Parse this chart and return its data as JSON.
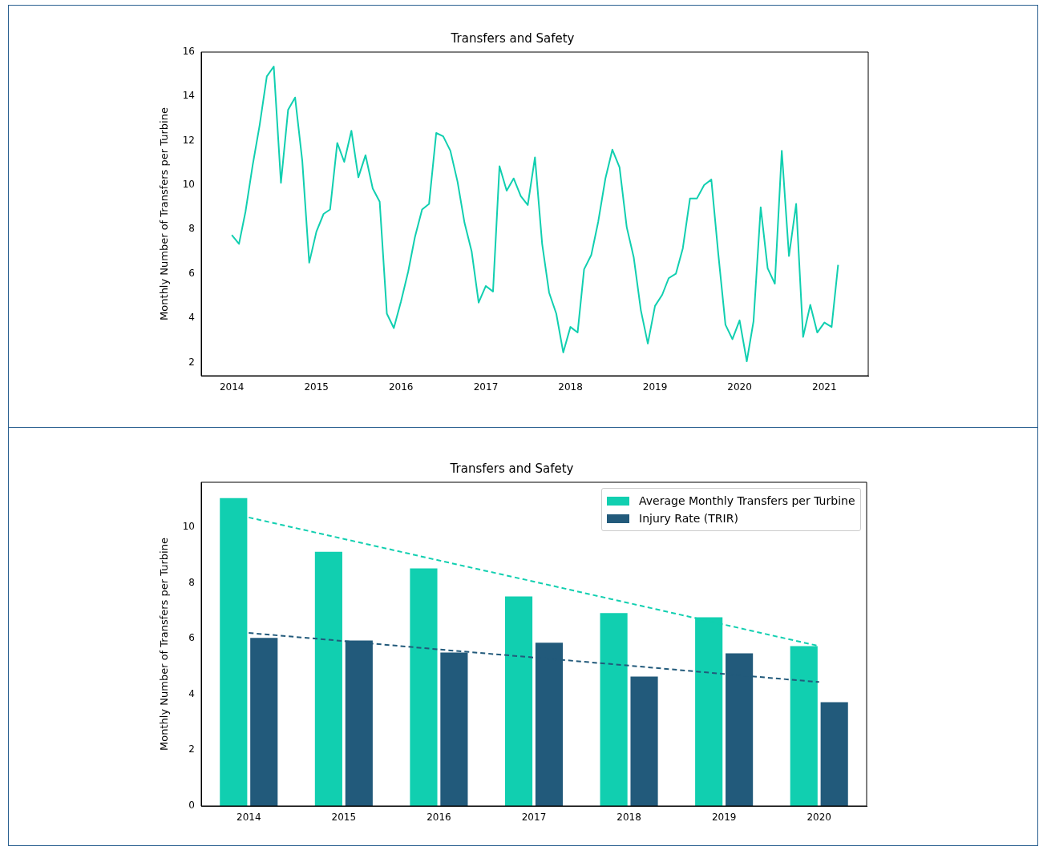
{
  "chart_data": [
    {
      "type": "line",
      "title": "Transfers and Safety",
      "ylabel": "Monthly Number of Transfers per Turbine",
      "x": [
        "2014-01",
        "2014-02",
        "2014-03",
        "2014-04",
        "2014-05",
        "2014-06",
        "2014-07",
        "2014-08",
        "2014-09",
        "2014-10",
        "2014-11",
        "2014-12",
        "2015-01",
        "2015-02",
        "2015-03",
        "2015-04",
        "2015-05",
        "2015-06",
        "2015-07",
        "2015-08",
        "2015-09",
        "2015-10",
        "2015-11",
        "2015-12",
        "2016-01",
        "2016-02",
        "2016-03",
        "2016-04",
        "2016-05",
        "2016-06",
        "2016-07",
        "2016-08",
        "2016-09",
        "2016-10",
        "2016-11",
        "2016-12",
        "2017-01",
        "2017-02",
        "2017-03",
        "2017-04",
        "2017-05",
        "2017-06",
        "2017-07",
        "2017-08",
        "2017-09",
        "2017-10",
        "2017-11",
        "2017-12",
        "2018-01",
        "2018-02",
        "2018-03",
        "2018-04",
        "2018-05",
        "2018-06",
        "2018-07",
        "2018-08",
        "2018-09",
        "2018-10",
        "2018-11",
        "2018-12",
        "2019-01",
        "2019-02",
        "2019-03",
        "2019-04",
        "2019-05",
        "2019-06",
        "2019-07",
        "2019-08",
        "2019-09",
        "2019-10",
        "2019-11",
        "2019-12",
        "2020-01",
        "2020-02",
        "2020-03",
        "2020-04",
        "2020-05",
        "2020-06",
        "2020-07",
        "2020-08",
        "2020-09",
        "2020-10",
        "2020-11",
        "2020-12",
        "2021-01",
        "2021-02",
        "2021-03"
      ],
      "series": [
        {
          "color": "#11cfb0",
          "values": [
            7.75,
            7.35,
            8.8,
            10.9,
            12.7,
            14.9,
            15.35,
            10.1,
            13.4,
            13.95,
            11.1,
            6.5,
            7.9,
            8.7,
            8.9,
            11.9,
            11.05,
            12.45,
            10.35,
            11.35,
            9.85,
            9.25,
            4.2,
            3.55,
            4.75,
            6.1,
            7.65,
            8.9,
            9.15,
            12.35,
            12.2,
            11.55,
            10.15,
            8.3,
            7.0,
            4.7,
            5.45,
            5.2,
            10.85,
            9.75,
            10.3,
            9.5,
            9.1,
            11.25,
            7.35,
            5.15,
            4.2,
            2.45,
            3.6,
            3.35,
            6.2,
            6.85,
            8.35,
            10.3,
            11.6,
            10.8,
            8.1,
            6.75,
            4.35,
            2.85,
            4.55,
            5.05,
            5.8,
            6.0,
            7.15,
            9.4,
            9.4,
            10.0,
            10.25,
            6.9,
            3.7,
            3.05,
            3.9,
            2.05,
            3.85,
            9.0,
            6.25,
            5.55,
            11.55,
            6.8,
            9.15,
            3.15,
            4.6,
            3.35,
            3.8,
            3.6,
            6.4
          ]
        }
      ],
      "xlim": [
        "2013-08-22",
        "2021-07-09"
      ],
      "xticks": [
        "2014",
        "2015",
        "2016",
        "2017",
        "2018",
        "2019",
        "2020",
        "2021"
      ],
      "ylim": [
        1.4,
        16
      ],
      "yticks": [
        2,
        4,
        6,
        8,
        10,
        12,
        14,
        16
      ]
    },
    {
      "type": "bar",
      "title": "Transfers and Safety",
      "ylabel": "Monthly Number of Transfers per Turbine",
      "categories": [
        "2014",
        "2015",
        "2016",
        "2017",
        "2018",
        "2019",
        "2020"
      ],
      "series": [
        {
          "name": "Average Monthly Transfers per Turbine",
          "color": "#11cfb0",
          "values": [
            11.03,
            9.11,
            8.51,
            7.51,
            6.91,
            6.76,
            5.73
          ]
        },
        {
          "name": "Injury Rate (TRIR)",
          "color": "#225a7b",
          "values": [
            6.02,
            5.93,
            5.5,
            5.85,
            4.64,
            5.47,
            3.72
          ]
        },
        {
          "type": "line",
          "color": "#11cfb0",
          "values": [
            10.34,
            9.57,
            8.8,
            8.04,
            7.27,
            6.5,
            5.73
          ],
          "line_style": "dashed",
          "marker": "none"
        },
        {
          "type": "line",
          "color": "#225a7b",
          "values": [
            6.2,
            5.91,
            5.61,
            5.32,
            5.03,
            4.73,
            4.44
          ],
          "line_style": "dashed",
          "marker": "none"
        }
      ],
      "ylim": [
        0,
        11.6
      ],
      "yticks": [
        0,
        2,
        4,
        6,
        8,
        10
      ],
      "legend": "top right"
    }
  ]
}
